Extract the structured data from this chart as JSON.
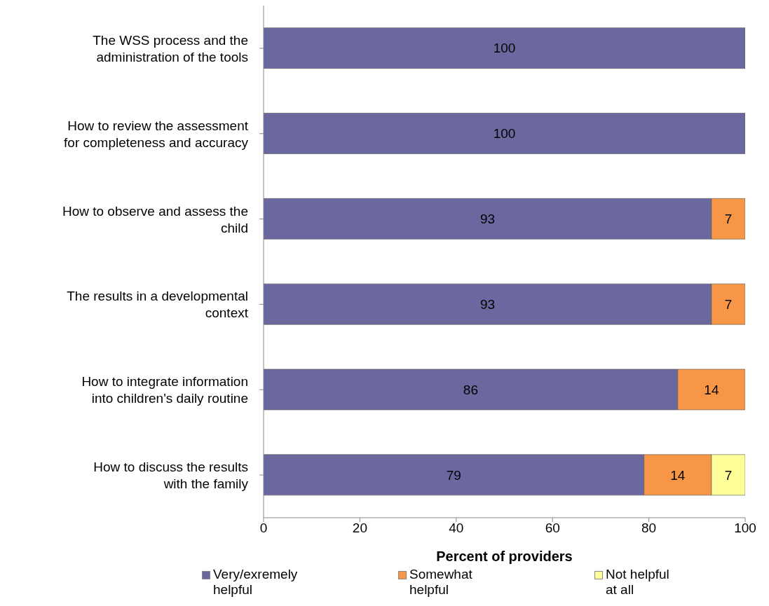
{
  "chart_data": {
    "type": "bar",
    "orientation": "horizontal",
    "stacked": true,
    "xlabel": "Percent of providers",
    "categories": [
      "The WSS process and the administration of the tools",
      "How to review the assessment for completeness and accuracy",
      "How to observe and assess the child",
      "The results in a developmental context",
      "How to integrate information into children's daily routine",
      "How to discuss the results with the family"
    ],
    "series": [
      {
        "name": "Very/exremely helpful",
        "color": "#6b68a0",
        "values": [
          100,
          100,
          93,
          93,
          86,
          79
        ]
      },
      {
        "name": "Somewhat helpful",
        "color": "#f79646",
        "values": [
          null,
          null,
          7,
          7,
          14,
          14
        ]
      },
      {
        "name": "Not helpful at all",
        "color": "#ffff99",
        "values": [
          null,
          null,
          null,
          null,
          null,
          7
        ]
      }
    ],
    "xlim": [
      0,
      100
    ],
    "xticks": [
      0,
      20,
      40,
      60,
      80,
      100
    ],
    "legend": "bottom",
    "data_labels": true
  }
}
